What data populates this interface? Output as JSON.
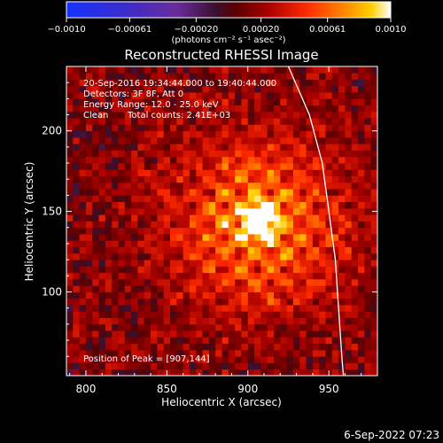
{
  "title": "Reconstructed RHESSI Image",
  "header_lines": [
    "20-Sep-2016 19:34:44.000 to 19:40:44.000",
    "Detectors: 3F 8F, Att 0",
    "Energy Range: 12.0 - 25.0 keV"
  ],
  "clean_label": "Clean",
  "total_counts_label": "Total counts: 2.41E+03",
  "peak_label": "Position of Peak = [907,144]",
  "footer_date": "6-Sep-2022 07:23",
  "colorbar": {
    "unit_label": "(photons cm⁻² s⁻¹ asec⁻²)",
    "tick_labels": [
      "−0.0010",
      "−0.00061",
      "−0.00020",
      "0.00020",
      "0.00061",
      "0.0010"
    ],
    "ticks": [
      -0.001,
      -0.00061,
      -0.0002,
      0.0002,
      0.00061,
      0.001
    ],
    "range": [
      -0.001,
      0.001
    ]
  },
  "chart_data": {
    "type": "heatmap",
    "title": "Reconstructed RHESSI Image",
    "xlabel": "Heliocentric X (arcsec)",
    "ylabel": "Heliocentric Y (arcsec)",
    "xlim": [
      788,
      980
    ],
    "ylim": [
      48,
      240
    ],
    "x_ticks": [
      800,
      850,
      900,
      950
    ],
    "y_ticks": [
      100,
      150,
      200
    ],
    "x_tick_labels": [
      "800",
      "850",
      "900",
      "950"
    ],
    "y_tick_labels": [
      "100",
      "150",
      "200"
    ],
    "peak_position": [
      907,
      144
    ],
    "peak_value": 0.001,
    "value_range": [
      -0.001,
      0.001
    ],
    "grid": false,
    "limb_line": {
      "points": [
        [
          925,
          240
        ],
        [
          938,
          210
        ],
        [
          946,
          180
        ],
        [
          950,
          150
        ],
        [
          954,
          120
        ],
        [
          956,
          90
        ],
        [
          958,
          60
        ],
        [
          959,
          48
        ]
      ]
    }
  }
}
